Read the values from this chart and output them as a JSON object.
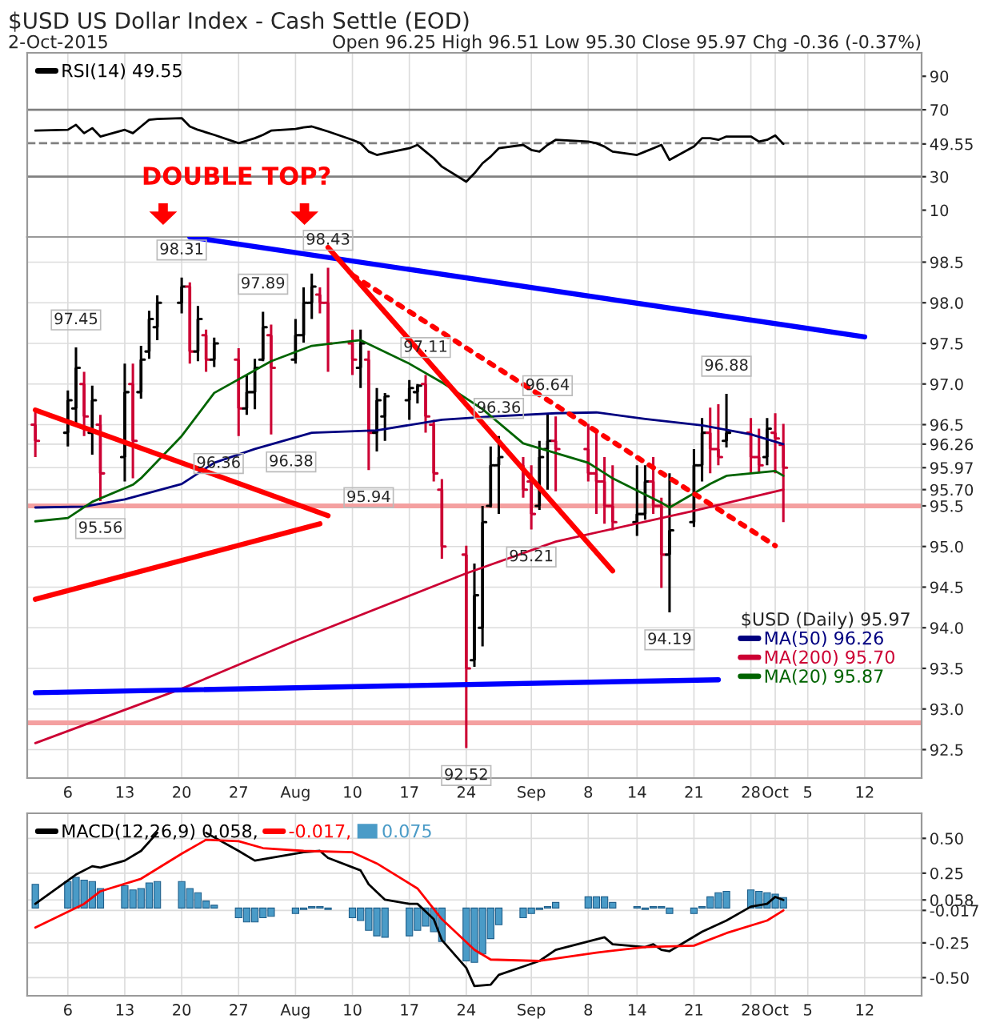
{
  "chart_data": [
    {
      "type": "line",
      "title": "$USD US Dollar Index - Cash Settle (EOD)",
      "subtitle": "2-Oct-2015",
      "annotations": [
        "Open 96.25 High 96.51 Low 95.30 Close 95.97 Chg -0.36 (-0.37%)"
      ],
      "tick_labels": "y",
      "grid": "x",
      "legend": "top left",
      "x": [
        "2015-07-02",
        "2015-07-06",
        "2015-07-07",
        "2015-07-08",
        "2015-07-09",
        "2015-07-10",
        "2015-07-13",
        "2015-07-14",
        "2015-07-15",
        "2015-07-16",
        "2015-07-17",
        "2015-07-20",
        "2015-07-21",
        "2015-07-22",
        "2015-07-23",
        "2015-07-24",
        "2015-07-27",
        "2015-07-28",
        "2015-07-29",
        "2015-07-30",
        "2015-07-31",
        "2015-08-03",
        "2015-08-04",
        "2015-08-05",
        "2015-08-06",
        "2015-08-07",
        "2015-08-10",
        "2015-08-11",
        "2015-08-12",
        "2015-08-13",
        "2015-08-14",
        "2015-08-17",
        "2015-08-18",
        "2015-08-19",
        "2015-08-20",
        "2015-08-21",
        "2015-08-24",
        "2015-08-25",
        "2015-08-26",
        "2015-08-27",
        "2015-08-28",
        "2015-08-31",
        "2015-09-01",
        "2015-09-02",
        "2015-09-03",
        "2015-09-04",
        "2015-09-08",
        "2015-09-09",
        "2015-09-10",
        "2015-09-11",
        "2015-09-14",
        "2015-09-15",
        "2015-09-16",
        "2015-09-17",
        "2015-09-18",
        "2015-09-21",
        "2015-09-22",
        "2015-09-23",
        "2015-09-24",
        "2015-09-25",
        "2015-09-28",
        "2015-09-29",
        "2015-09-30",
        "2015-10-01",
        "2015-10-02"
      ],
      "series": [
        {
          "name": "RSI(14) 49.55",
          "color": "#000000",
          "values": [
            57.5,
            58,
            61,
            56,
            59,
            54,
            58,
            56,
            60,
            64,
            64.5,
            65,
            60,
            58,
            56.5,
            55,
            50,
            51.5,
            53,
            55,
            57.5,
            58.5,
            59.5,
            60,
            58.5,
            57,
            52,
            50,
            45,
            43,
            44,
            47,
            49,
            45,
            41,
            36,
            27,
            32,
            38,
            42,
            47,
            49,
            46,
            45,
            49,
            52,
            51,
            50,
            48,
            45,
            43,
            45,
            47,
            49,
            40,
            48,
            53,
            53,
            52,
            54,
            54,
            51,
            52,
            54.6,
            49.55
          ]
        }
      ],
      "ylim": [
        -6,
        104
      ],
      "yticks": [
        10,
        30,
        {
          "value": 49.55,
          "label": "49.55"
        },
        70,
        90
      ],
      "xlim": [
        "2015-07-01",
        "2015-10-19"
      ],
      "xticks": [
        {
          "value": "2015-07-06",
          "label": null
        },
        {
          "value": "2015-07-13",
          "label": null
        },
        {
          "value": "2015-07-20",
          "label": null
        },
        {
          "value": "2015-07-27",
          "label": null
        },
        {
          "value": "2015-08-03",
          "label": null
        },
        {
          "value": "2015-08-10",
          "label": null
        },
        {
          "value": "2015-08-17",
          "label": null
        },
        {
          "value": "2015-08-24",
          "label": null
        },
        {
          "value": "2015-09-01",
          "label": null
        },
        {
          "value": "2015-09-08",
          "label": null
        },
        {
          "value": "2015-09-14",
          "label": null
        },
        {
          "value": "2015-09-21",
          "label": null
        },
        {
          "value": "2015-09-28",
          "label": null
        },
        {
          "value": "2015-10-01",
          "label": null
        },
        {
          "value": "2015-10-05",
          "label": null
        },
        {
          "value": "2015-10-12",
          "label": null
        }
      ],
      "ref_lines": [
        {
          "axis": "y",
          "value": 70,
          "color": "#808080"
        },
        {
          "axis": "y",
          "value": 30,
          "color": "#808080"
        },
        {
          "axis": "y",
          "value": 50,
          "color": "#808080",
          "line_style": "dashed"
        }
      ]
    },
    {
      "type": "candlestick",
      "legend_title": "$USD (Daily) 95.97",
      "grid": true,
      "legend": "bottom right",
      "x": [
        "2015-07-02",
        "2015-07-06",
        "2015-07-07",
        "2015-07-08",
        "2015-07-09",
        "2015-07-10",
        "2015-07-13",
        "2015-07-14",
        "2015-07-15",
        "2015-07-16",
        "2015-07-17",
        "2015-07-20",
        "2015-07-21",
        "2015-07-22",
        "2015-07-23",
        "2015-07-24",
        "2015-07-27",
        "2015-07-28",
        "2015-07-29",
        "2015-07-30",
        "2015-07-31",
        "2015-08-03",
        "2015-08-04",
        "2015-08-05",
        "2015-08-06",
        "2015-08-07",
        "2015-08-10",
        "2015-08-11",
        "2015-08-12",
        "2015-08-13",
        "2015-08-14",
        "2015-08-17",
        "2015-08-18",
        "2015-08-19",
        "2015-08-20",
        "2015-08-21",
        "2015-08-24",
        "2015-08-25",
        "2015-08-26",
        "2015-08-27",
        "2015-08-28",
        "2015-08-31",
        "2015-09-01",
        "2015-09-02",
        "2015-09-03",
        "2015-09-04",
        "2015-09-08",
        "2015-09-09",
        "2015-09-10",
        "2015-09-11",
        "2015-09-14",
        "2015-09-15",
        "2015-09-16",
        "2015-09-17",
        "2015-09-18",
        "2015-09-21",
        "2015-09-22",
        "2015-09-23",
        "2015-09-24",
        "2015-09-25",
        "2015-09-28",
        "2015-09-29",
        "2015-09-30",
        "2015-10-01",
        "2015-10-02"
      ],
      "ohlc": [
        [
          96.5,
          96.69,
          96.1,
          96.3
        ],
        [
          96.4,
          96.92,
          96.23,
          96.8
        ],
        [
          96.7,
          97.45,
          96.49,
          97.2
        ],
        [
          97.0,
          97.15,
          96.36,
          96.6
        ],
        [
          96.4,
          96.98,
          96.13,
          96.8
        ],
        [
          96.5,
          96.62,
          95.56,
          95.9
        ],
        [
          96.1,
          97.25,
          95.8,
          96.9
        ],
        [
          97.0,
          97.25,
          95.84,
          96.3
        ],
        [
          96.9,
          97.47,
          96.82,
          97.3
        ],
        [
          97.4,
          97.9,
          97.31,
          97.8
        ],
        [
          97.7,
          98.09,
          97.54,
          98.0
        ],
        [
          98.0,
          98.31,
          97.87,
          98.2
        ],
        [
          98.2,
          98.25,
          97.25,
          97.4
        ],
        [
          97.4,
          97.96,
          97.28,
          97.8
        ],
        [
          97.6,
          97.67,
          97.15,
          97.3
        ],
        [
          97.3,
          97.57,
          97.21,
          97.5
        ],
        [
          97.3,
          97.44,
          96.36,
          96.7
        ],
        [
          96.7,
          97.11,
          96.62,
          96.9
        ],
        [
          96.9,
          97.31,
          96.69,
          97.2
        ],
        [
          97.3,
          97.89,
          97.28,
          97.7
        ],
        [
          97.6,
          97.73,
          96.38,
          97.2
        ],
        [
          97.3,
          97.8,
          97.25,
          97.6
        ],
        [
          97.6,
          98.19,
          97.51,
          98.0
        ],
        [
          98.0,
          98.36,
          97.8,
          98.2
        ],
        [
          98.1,
          98.19,
          97.87,
          98.0
        ],
        [
          98.0,
          98.43,
          97.15,
          97.5
        ],
        [
          97.5,
          97.67,
          97.11,
          97.3
        ],
        [
          97.2,
          97.67,
          96.95,
          97.5
        ],
        [
          97.3,
          97.41,
          95.94,
          96.4
        ],
        [
          96.4,
          96.95,
          96.17,
          96.8
        ],
        [
          96.6,
          96.89,
          96.3,
          96.85
        ],
        [
          96.8,
          97.05,
          96.56,
          96.95
        ],
        [
          96.9,
          97.0,
          96.76,
          96.98
        ],
        [
          97.0,
          97.11,
          96.4,
          96.6
        ],
        [
          96.5,
          96.56,
          95.8,
          95.9
        ],
        [
          95.7,
          95.83,
          94.85,
          95.0
        ],
        [
          94.9,
          95.01,
          92.52,
          93.5
        ],
        [
          93.6,
          94.79,
          93.52,
          94.4
        ],
        [
          94.0,
          95.5,
          93.77,
          95.3
        ],
        [
          95.5,
          96.23,
          95.48,
          96.0
        ],
        [
          96.0,
          96.36,
          95.4,
          96.1
        ],
        [
          96.0,
          96.1,
          95.6,
          95.7
        ],
        [
          95.8,
          96.0,
          95.21,
          95.4
        ],
        [
          95.5,
          96.3,
          95.45,
          96.1
        ],
        [
          96.2,
          96.64,
          95.7,
          96.3
        ],
        [
          96.3,
          96.6,
          95.68,
          96.2
        ],
        [
          96.2,
          96.51,
          95.8,
          95.9
        ],
        [
          95.9,
          96.41,
          95.4,
          95.8
        ],
        [
          95.8,
          96.1,
          95.28,
          95.5
        ],
        [
          95.5,
          96.0,
          95.2,
          95.3
        ],
        [
          95.3,
          96.0,
          95.13,
          95.4
        ],
        [
          95.4,
          96.0,
          95.33,
          95.8
        ],
        [
          95.8,
          96.1,
          95.4,
          95.5
        ],
        [
          95.5,
          95.6,
          94.49,
          94.9
        ],
        [
          94.9,
          95.9,
          94.19,
          95.2
        ],
        [
          95.3,
          96.2,
          95.24,
          96.0
        ],
        [
          96.0,
          96.58,
          95.8,
          96.4
        ],
        [
          96.4,
          96.71,
          95.9,
          96.2
        ],
        [
          96.2,
          96.75,
          96.0,
          96.1
        ],
        [
          96.3,
          96.88,
          96.22,
          96.4
        ],
        [
          96.4,
          96.58,
          95.9,
          96.1
        ],
        [
          96.1,
          96.45,
          95.9,
          96.0
        ],
        [
          96.1,
          96.58,
          96.0,
          96.45
        ],
        [
          96.4,
          96.64,
          95.9,
          96.33
        ],
        [
          96.25,
          96.51,
          95.3,
          95.97
        ]
      ],
      "colors": [
        "#cc0033",
        "#000000",
        "#000000",
        "#cc0033",
        "#000000",
        "#cc0033",
        "#000000",
        "#cc0033",
        "#000000",
        "#000000",
        "#000000",
        "#000000",
        "#cc0033",
        "#000000",
        "#cc0033",
        "#000000",
        "#cc0033",
        "#000000",
        "#000000",
        "#000000",
        "#cc0033",
        "#000000",
        "#000000",
        "#000000",
        "#cc0033",
        "#cc0033",
        "#cc0033",
        "#000000",
        "#cc0033",
        "#000000",
        "#000000",
        "#000000",
        "#000000",
        "#cc0033",
        "#cc0033",
        "#cc0033",
        "#cc0033",
        "#000000",
        "#000000",
        "#000000",
        "#000000",
        "#cc0033",
        "#cc0033",
        "#000000",
        "#000000",
        "#cc0033",
        "#cc0033",
        "#cc0033",
        "#cc0033",
        "#cc0033",
        "#000000",
        "#000000",
        "#cc0033",
        "#cc0033",
        "#000000",
        "#000000",
        "#000000",
        "#cc0033",
        "#cc0033",
        "#000000",
        "#cc0033",
        "#cc0033",
        "#000000",
        "#cc0033",
        "#cc0033"
      ],
      "series": [
        {
          "type": "line",
          "name": "MA(50) 96.26",
          "color": "#000080",
          "x": [
            "2015-07-02",
            "2015-07-08",
            "2015-07-13",
            "2015-07-20",
            "2015-07-24",
            "2015-07-29",
            "2015-08-05",
            "2015-08-13",
            "2015-08-21",
            "2015-08-27",
            "2015-09-04",
            "2015-09-09",
            "2015-09-15",
            "2015-09-22",
            "2015-09-28",
            "2015-10-02"
          ],
          "values": [
            95.48,
            95.49,
            95.58,
            95.77,
            96.03,
            96.2,
            96.4,
            96.43,
            96.56,
            96.6,
            96.64,
            96.65,
            96.57,
            96.49,
            96.38,
            96.26
          ]
        },
        {
          "type": "line",
          "name": "MA(200) 95.70",
          "color": "#cc0033",
          "x": [
            "2015-07-02",
            "2015-07-20",
            "2015-08-03",
            "2015-08-24",
            "2015-09-04",
            "2015-09-21",
            "2015-10-02"
          ],
          "values": [
            92.58,
            93.25,
            93.84,
            94.67,
            95.06,
            95.44,
            95.7
          ]
        },
        {
          "type": "line",
          "name": "MA(20) 95.87",
          "color": "#006400",
          "x": [
            "2015-07-02",
            "2015-07-06",
            "2015-07-09",
            "2015-07-14",
            "2015-07-15",
            "2015-07-20",
            "2015-07-24",
            "2015-07-31",
            "2015-08-05",
            "2015-08-11",
            "2015-08-17",
            "2015-08-21",
            "2015-08-26",
            "2015-08-31",
            "2015-09-08",
            "2015-09-11",
            "2015-09-17",
            "2015-09-18",
            "2015-09-23",
            "2015-09-25",
            "2015-10-01",
            "2015-10-02"
          ],
          "values": [
            95.31,
            95.35,
            95.55,
            95.76,
            95.84,
            96.36,
            96.89,
            97.28,
            97.47,
            97.54,
            97.25,
            97.02,
            96.69,
            96.27,
            96.03,
            95.84,
            95.54,
            95.48,
            95.77,
            95.87,
            95.93,
            95.87
          ]
        },
        {
          "type": "line",
          "color": "#0000ff",
          "x": [
            "2015-07-21",
            "2015-10-12"
          ],
          "values": [
            98.81,
            97.58
          ]
        },
        {
          "type": "line",
          "color": "#ff0000",
          "x": [
            "2015-07-02",
            "2015-08-07"
          ],
          "values": [
            96.68,
            95.38
          ]
        },
        {
          "type": "line",
          "color": "#ff0000",
          "x": [
            "2015-07-02",
            "2015-08-06"
          ],
          "values": [
            94.35,
            95.28
          ]
        },
        {
          "type": "line",
          "color": "#ff0000",
          "x": [
            "2015-08-07",
            "2015-09-11"
          ],
          "values": [
            98.68,
            94.7
          ]
        },
        {
          "type": "line",
          "color": "#ff0000",
          "line_style": "dotted",
          "x": [
            "2015-08-10",
            "2015-10-01"
          ],
          "values": [
            98.34,
            95.01
          ]
        },
        {
          "type": "line",
          "color": "#0000ff",
          "x": [
            "2015-07-02",
            "2015-09-24"
          ],
          "values": [
            93.2,
            93.36
          ]
        }
      ],
      "bands": [
        {
          "axis": "y",
          "from": 95.47,
          "to": 95.53,
          "color": "#f4a0a0"
        },
        {
          "axis": "y",
          "from": 92.8,
          "to": 92.86,
          "color": "#f4a0a0"
        }
      ],
      "annotations": [
        "DOUBLE TOP?",
        {
          "text": "97.45",
          "x": "2015-07-07",
          "y": 97.45
        },
        {
          "text": "98.31",
          "x": "2015-07-20",
          "y": 98.31
        },
        {
          "text": "97.89",
          "x": "2015-07-30",
          "y": 97.89
        },
        {
          "text": "98.43",
          "x": "2015-08-07",
          "y": 98.43
        },
        {
          "text": "97.11",
          "x": "2015-08-19",
          "y": 97.11
        },
        {
          "text": "96.36",
          "x": "2015-07-27",
          "y": 96.36
        },
        {
          "text": "96.38",
          "x": "2015-07-31",
          "y": 96.38
        },
        {
          "text": "95.56",
          "x": "2015-07-10",
          "y": 95.56
        },
        {
          "text": "95.94",
          "x": "2015-08-12",
          "y": 95.94
        },
        {
          "text": "92.52",
          "x": "2015-08-24",
          "y": 92.52
        },
        {
          "text": "96.36",
          "x": "2015-08-28",
          "y": 96.36
        },
        {
          "text": "96.64",
          "x": "2015-09-03",
          "y": 96.64
        },
        {
          "text": "95.21",
          "x": "2015-09-01",
          "y": 95.21
        },
        {
          "text": "94.19",
          "x": "2015-09-18",
          "y": 94.19
        },
        {
          "text": "96.88",
          "x": "2015-09-25",
          "y": 96.88
        }
      ],
      "ylim": [
        92.15,
        98.81
      ],
      "yticks": [
        92.5,
        {
          "value": 93,
          "label": "93.0"
        },
        93.5,
        {
          "value": 94,
          "label": "94.0"
        },
        94.5,
        {
          "value": 95,
          "label": "95.0"
        },
        95.5,
        {
          "value": 95.7,
          "label": "95.70"
        },
        95.97,
        96.26,
        96.5,
        {
          "value": 97,
          "label": "97.0"
        },
        97.5,
        {
          "value": 98,
          "label": "98.0"
        },
        98.5
      ],
      "xlim": [
        "2015-07-01",
        "2015-10-19"
      ],
      "xticks": [
        {
          "value": "2015-07-06",
          "label": "6"
        },
        {
          "value": "2015-07-13",
          "label": "13"
        },
        {
          "value": "2015-07-20",
          "label": "20"
        },
        {
          "value": "2015-07-27",
          "label": "27"
        },
        {
          "value": "2015-08-03",
          "label": "Aug"
        },
        {
          "value": "2015-08-10",
          "label": "10"
        },
        {
          "value": "2015-08-17",
          "label": "17"
        },
        {
          "value": "2015-08-24",
          "label": "24"
        },
        {
          "value": "2015-09-01",
          "label": "Sep"
        },
        {
          "value": "2015-09-08",
          "label": "8"
        },
        {
          "value": "2015-09-14",
          "label": "14"
        },
        {
          "value": "2015-09-21",
          "label": "21"
        },
        {
          "value": "2015-09-28",
          "label": "28"
        },
        {
          "value": "2015-10-01",
          "label": "Oct"
        },
        {
          "value": "2015-10-05",
          "label": "5"
        },
        {
          "value": "2015-10-12",
          "label": "12"
        }
      ]
    },
    {
      "type": "line",
      "grid": true,
      "legend": "top left",
      "x": [
        "2015-07-02",
        "2015-07-06",
        "2015-07-07",
        "2015-07-08",
        "2015-07-09",
        "2015-07-10",
        "2015-07-13",
        "2015-07-14",
        "2015-07-15",
        "2015-07-16",
        "2015-07-17",
        "2015-07-20",
        "2015-07-21",
        "2015-07-22",
        "2015-07-23",
        "2015-07-24",
        "2015-07-27",
        "2015-07-28",
        "2015-07-29",
        "2015-07-30",
        "2015-07-31",
        "2015-08-03",
        "2015-08-04",
        "2015-08-05",
        "2015-08-06",
        "2015-08-07",
        "2015-08-10",
        "2015-08-11",
        "2015-08-12",
        "2015-08-13",
        "2015-08-14",
        "2015-08-17",
        "2015-08-18",
        "2015-08-19",
        "2015-08-20",
        "2015-08-21",
        "2015-08-24",
        "2015-08-25",
        "2015-08-26",
        "2015-08-27",
        "2015-08-28",
        "2015-08-31",
        "2015-09-01",
        "2015-09-02",
        "2015-09-03",
        "2015-09-04",
        "2015-09-08",
        "2015-09-09",
        "2015-09-10",
        "2015-09-11",
        "2015-09-14",
        "2015-09-15",
        "2015-09-16",
        "2015-09-17",
        "2015-09-18",
        "2015-09-21",
        "2015-09-22",
        "2015-09-23",
        "2015-09-24",
        "2015-09-25",
        "2015-09-28",
        "2015-09-29",
        "2015-09-30",
        "2015-10-01",
        "2015-10-02"
      ],
      "series": [
        {
          "type": "line",
          "name": "MACD(12,26,9) 0.058,",
          "color": "#000000",
          "x": [
            "2015-07-02",
            "2015-07-07",
            "2015-07-09",
            "2015-07-10",
            "2015-07-13",
            "2015-07-15",
            "2015-07-17",
            "2015-07-20",
            "2015-07-23",
            "2015-07-27",
            "2015-07-29",
            "2015-07-31",
            "2015-08-04",
            "2015-08-06",
            "2015-08-07",
            "2015-08-11",
            "2015-08-12",
            "2015-08-14",
            "2015-08-17",
            "2015-08-18",
            "2015-08-20",
            "2015-08-21",
            "2015-08-24",
            "2015-08-25",
            "2015-08-27",
            "2015-08-28",
            "2015-08-31",
            "2015-09-02",
            "2015-09-04",
            "2015-09-10",
            "2015-09-11",
            "2015-09-15",
            "2015-09-16",
            "2015-09-17",
            "2015-09-18",
            "2015-09-22",
            "2015-09-25",
            "2015-09-28",
            "2015-09-30",
            "2015-10-01",
            "2015-10-02"
          ],
          "values": [
            0.03,
            0.24,
            0.3,
            0.29,
            0.34,
            0.41,
            0.54,
            null,
            0.54,
            0.41,
            0.34,
            0.36,
            0.4,
            0.41,
            0.36,
            0.27,
            0.17,
            0.06,
            0.03,
            0.03,
            -0.08,
            -0.23,
            -0.43,
            -0.56,
            -0.55,
            -0.48,
            -0.42,
            -0.38,
            -0.3,
            -0.21,
            -0.26,
            -0.28,
            -0.26,
            -0.3,
            -0.31,
            -0.17,
            -0.09,
            0.01,
            0.03,
            0.08,
            0.058
          ]
        },
        {
          "type": "line",
          "name": "-0.017,",
          "color": "#ff0000",
          "x": [
            "2015-07-02",
            "2015-07-08",
            "2015-07-10",
            "2015-07-15",
            "2015-07-20",
            "2015-07-23",
            "2015-07-27",
            "2015-07-30",
            "2015-08-04",
            "2015-08-10",
            "2015-08-13",
            "2015-08-18",
            "2015-08-21",
            "2015-08-25",
            "2015-08-27",
            "2015-09-02",
            "2015-09-09",
            "2015-09-15",
            "2015-09-21",
            "2015-09-25",
            "2015-09-30",
            "2015-10-02"
          ],
          "values": [
            -0.14,
            0.03,
            0.12,
            0.21,
            0.39,
            0.49,
            0.48,
            0.43,
            0.41,
            0.4,
            0.32,
            0.14,
            -0.08,
            -0.3,
            -0.37,
            -0.38,
            -0.32,
            -0.28,
            -0.27,
            -0.18,
            -0.09,
            -0.017
          ]
        },
        {
          "type": "bar",
          "name": "0.075",
          "color": "#4a9bc7",
          "values": [
            0.17,
            0.19,
            0.22,
            0.2,
            0.19,
            0.14,
            0.16,
            0.13,
            0.14,
            0.18,
            0.19,
            0.19,
            0.14,
            0.11,
            0.05,
            0.02,
            -0.07,
            -0.1,
            -0.1,
            -0.07,
            -0.06,
            -0.04,
            -0.01,
            0.01,
            0.01,
            -0.01,
            -0.07,
            -0.09,
            -0.16,
            -0.2,
            -0.21,
            -0.2,
            -0.16,
            -0.13,
            -0.17,
            -0.24,
            -0.38,
            -0.39,
            -0.33,
            -0.22,
            -0.12,
            -0.07,
            -0.04,
            -0.01,
            0.01,
            0.04,
            0.08,
            0.08,
            0.08,
            0.04,
            0.01,
            -0.01,
            0.01,
            0.01,
            -0.04,
            -0.04,
            0.01,
            0.08,
            0.11,
            0.12,
            0.13,
            0.12,
            0.11,
            0.1,
            0.075
          ]
        }
      ],
      "ylim": [
        -0.63,
        0.68
      ],
      "yticks": [
        {
          "value": -0.5,
          "label": "-0.50"
        },
        -0.25,
        -0.017,
        0.058,
        0.25,
        {
          "value": 0.5,
          "label": "0.50"
        }
      ],
      "xlim": [
        "2015-07-01",
        "2015-10-19"
      ],
      "xticks": [
        {
          "value": "2015-07-06",
          "label": "6"
        },
        {
          "value": "2015-07-13",
          "label": "13"
        },
        {
          "value": "2015-07-20",
          "label": "20"
        },
        {
          "value": "2015-07-27",
          "label": "27"
        },
        {
          "value": "2015-08-03",
          "label": "Aug"
        },
        {
          "value": "2015-08-10",
          "label": "10"
        },
        {
          "value": "2015-08-17",
          "label": "17"
        },
        {
          "value": "2015-08-24",
          "label": "24"
        },
        {
          "value": "2015-09-01",
          "label": "Sep"
        },
        {
          "value": "2015-09-08",
          "label": "8"
        },
        {
          "value": "2015-09-14",
          "label": "14"
        },
        {
          "value": "2015-09-21",
          "label": "21"
        },
        {
          "value": "2015-09-28",
          "label": "28"
        },
        {
          "value": "2015-10-01",
          "label": "Oct"
        },
        {
          "value": "2015-10-05",
          "label": "5"
        },
        {
          "value": "2015-10-12",
          "label": "12"
        }
      ]
    }
  ]
}
